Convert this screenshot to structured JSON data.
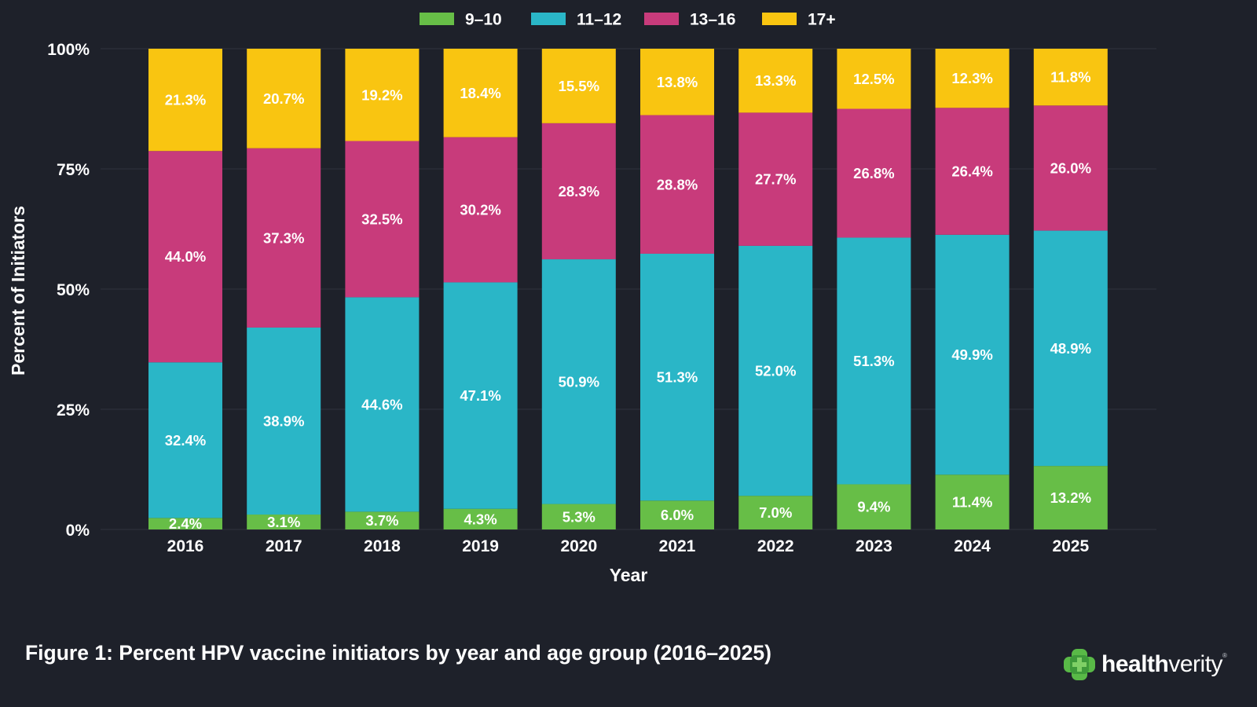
{
  "chart_data": {
    "type": "bar",
    "stacked": true,
    "normalized_to_100": true,
    "categories": [
      "2016",
      "2017",
      "2018",
      "2019",
      "2020",
      "2021",
      "2022",
      "2023",
      "2024",
      "2025"
    ],
    "series": [
      {
        "name": "9–10",
        "color": "#67be47",
        "values": [
          2.4,
          3.1,
          3.7,
          4.3,
          5.3,
          6.0,
          7.0,
          9.4,
          11.4,
          13.2
        ],
        "labels": [
          "2.4%",
          "3.1%",
          "3.7%",
          "4.3%",
          "5.3%",
          "6.0%",
          "7.0%",
          "9.4%",
          "11.4%",
          "13.2%"
        ]
      },
      {
        "name": "11–12",
        "color": "#2ab6c7",
        "values": [
          32.4,
          38.9,
          44.6,
          47.1,
          50.9,
          51.3,
          52.0,
          51.3,
          49.9,
          48.9
        ],
        "labels": [
          "32.4%",
          "38.9%",
          "44.6%",
          "47.1%",
          "50.9%",
          "51.3%",
          "52.0%",
          "51.3%",
          "49.9%",
          "48.9%"
        ]
      },
      {
        "name": "13–16",
        "color": "#c83b7b",
        "values": [
          44.0,
          37.3,
          32.5,
          30.2,
          28.3,
          28.8,
          27.7,
          26.8,
          26.4,
          26.0
        ],
        "labels": [
          "44.0%",
          "37.3%",
          "32.5%",
          "30.2%",
          "28.3%",
          "28.8%",
          "27.7%",
          "26.8%",
          "26.4%",
          "26.0%"
        ]
      },
      {
        "name": "17+",
        "color": "#f9c511",
        "values": [
          21.3,
          20.7,
          19.2,
          18.4,
          15.5,
          13.8,
          13.3,
          12.5,
          12.3,
          11.8
        ],
        "labels": [
          "21.3%",
          "20.7%",
          "19.2%",
          "18.4%",
          "15.5%",
          "13.8%",
          "13.3%",
          "12.5%",
          "12.3%",
          "11.8%"
        ]
      }
    ],
    "title": "Figure 1: Percent HPV vaccine initiators by year and age group (2016–2025)",
    "xlabel": "Year",
    "ylabel": "Percent of Initiators",
    "ylim": [
      0,
      100
    ],
    "yticks": [
      0,
      25,
      50,
      75,
      100
    ],
    "ytick_labels": [
      "0%",
      "25%",
      "50%",
      "75%",
      "100%"
    ],
    "grid": true,
    "legend_position": "top-center"
  },
  "colors": {
    "background": "#1e212a",
    "gridline": "#2a2e38",
    "text": "#ffffff"
  },
  "branding": {
    "logo_text_bold": "health",
    "logo_text_regular": "verity",
    "logo_icon": "plus-cross-icon",
    "logo_color": "#59b947"
  }
}
